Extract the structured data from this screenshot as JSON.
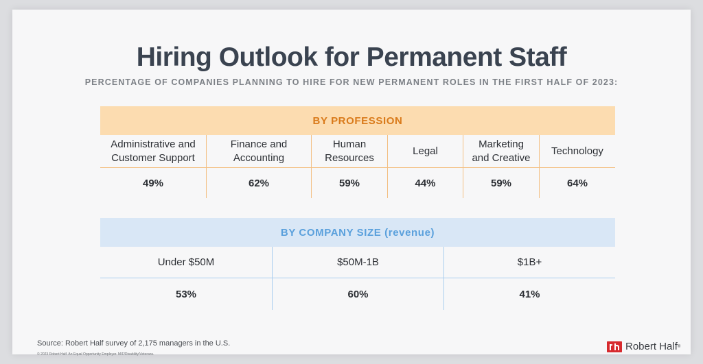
{
  "title": "Hiring Outlook for Permanent Staff",
  "subtitle": "PERCENTAGE OF COMPANIES PLANNING TO HIRE FOR NEW PERMANENT ROLES IN THE FIRST HALF OF 2023:",
  "by_profession": {
    "header": "BY PROFESSION",
    "columns": [
      {
        "line1": "Administrative and",
        "line2": "Customer Support",
        "value": "49%"
      },
      {
        "line1": "Finance and",
        "line2": "Accounting",
        "value": "62%"
      },
      {
        "line1": "Human",
        "line2": "Resources",
        "value": "59%"
      },
      {
        "line1": "Legal",
        "line2": "",
        "value": "44%"
      },
      {
        "line1": "Marketing",
        "line2": "and Creative",
        "value": "59%"
      },
      {
        "line1": "Technology",
        "line2": "",
        "value": "64%"
      }
    ]
  },
  "by_company_size": {
    "header": "BY COMPANY SIZE (revenue)",
    "columns": [
      {
        "label": "Under $50M",
        "value": "53%"
      },
      {
        "label": "$50M-1B",
        "value": "60%"
      },
      {
        "label": "$1B+",
        "value": "41%"
      }
    ]
  },
  "source": "Source: Robert Half survey of 2,175 managers in the U.S.",
  "legal": "© 2023 Robert Half. An Equal Opportunity Employer. M/F/Disability/Veterans.",
  "brand": {
    "name": "Robert Half",
    "mark": "®"
  },
  "colors": {
    "profession_header_bg": "#fcdcb0",
    "profession_header_text": "#d97a1a",
    "profession_rule": "#f3bf82",
    "size_header_bg": "#d9e7f6",
    "size_header_text": "#5aa0dc",
    "size_rule": "#a9cdef",
    "brand_red": "#d72a2e"
  }
}
